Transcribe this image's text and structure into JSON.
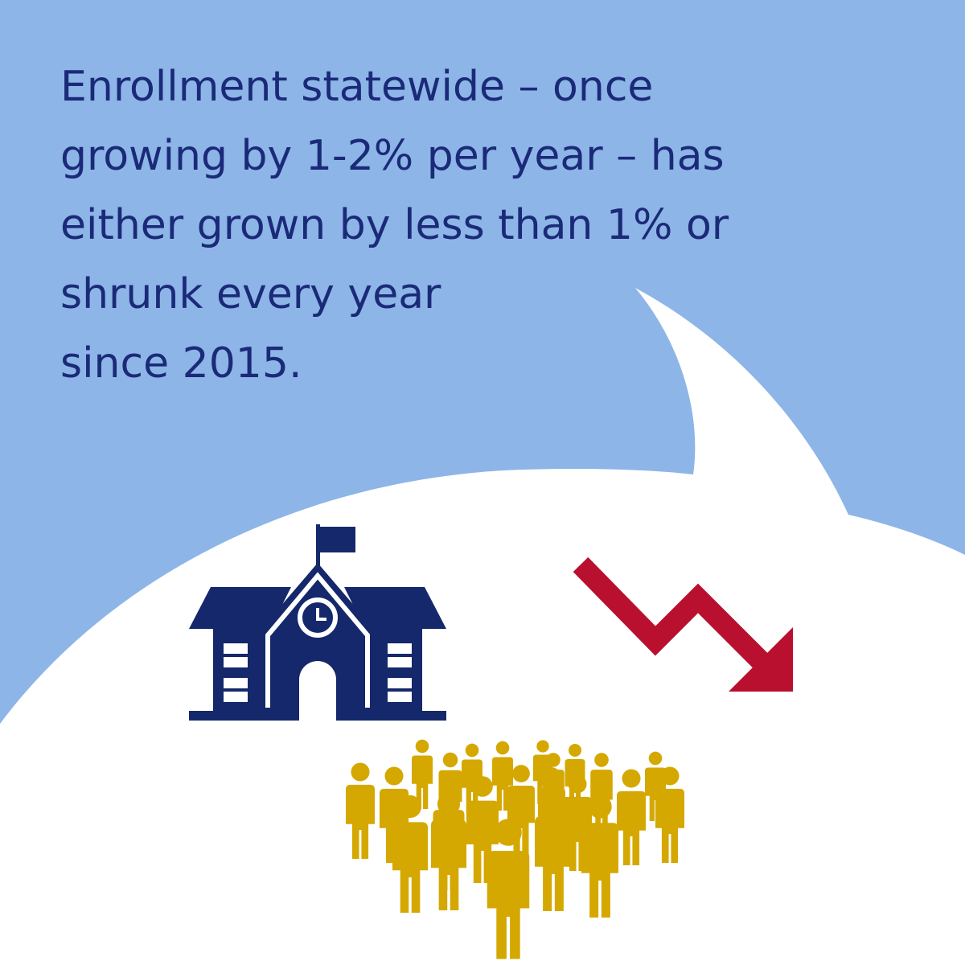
{
  "headline": {
    "lines": [
      "Enrollment statewide – once",
      "growing by 1-2% per year – has",
      "either grown by less than 1% or",
      "shrunk every year",
      "since 2015."
    ]
  }
}
